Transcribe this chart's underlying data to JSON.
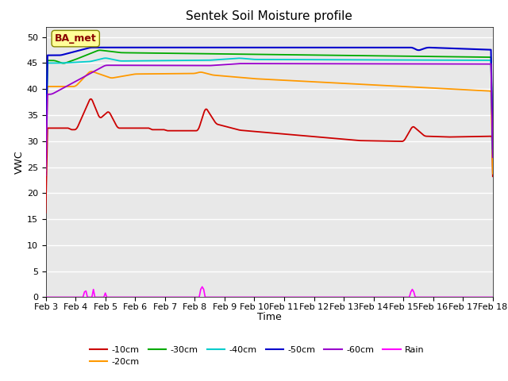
{
  "title": "Sentek Soil Moisture profile",
  "xlabel": "Time",
  "ylabel": "VWC",
  "annotation": "BA_met",
  "ylim": [
    0,
    52
  ],
  "yticks": [
    0,
    5,
    10,
    15,
    20,
    25,
    30,
    35,
    40,
    45,
    50
  ],
  "x_labels": [
    "Feb 3",
    "Feb 4",
    "Feb 5",
    "Feb 6",
    "Feb 7",
    "Feb 8",
    "Feb 9",
    "Feb 10",
    "Feb 11",
    "Feb 12",
    "Feb 13",
    "Feb 14",
    "Feb 15",
    "Feb 16",
    "Feb 17",
    "Feb 18"
  ],
  "colors": {
    "10cm": "#cc0000",
    "20cm": "#ff9900",
    "30cm": "#00aa00",
    "40cm": "#00cccc",
    "50cm": "#0000cc",
    "60cm": "#9900cc",
    "rain": "#ff00ff"
  },
  "bg_color": "#e8e8e8",
  "grid_color": "#ffffff"
}
